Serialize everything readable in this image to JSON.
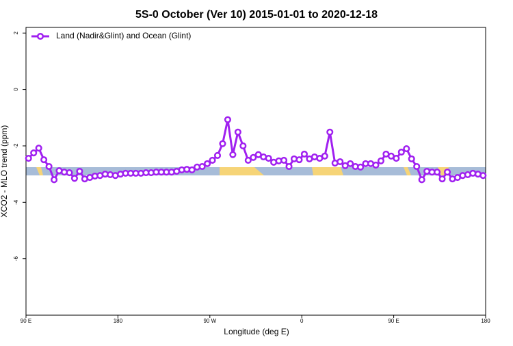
{
  "chart_data": {
    "type": "line",
    "title": "5S-0 October (Ver 10)   2015-01-01 to 2020-12-18",
    "x_label": "Longitude (deg E)",
    "y_label": "XCO2 - MLO trend (ppm)",
    "legend_position": "top-left",
    "x": [
      92.5,
      97.5,
      102.5,
      107.5,
      112.5,
      117.5,
      122.5,
      127.5,
      132.5,
      137.5,
      142.5,
      147.5,
      152.5,
      157.5,
      162.5,
      167.5,
      172.5,
      177.5,
      182.5,
      187.5,
      192.5,
      197.5,
      202.5,
      207.5,
      212.5,
      217.5,
      222.5,
      227.5,
      232.5,
      237.5,
      242.5,
      247.5,
      252.5,
      257.5,
      262.5,
      267.5,
      272.5,
      277.5,
      282.5,
      287.5,
      292.5,
      297.5,
      302.5,
      307.5,
      312.5,
      317.5,
      322.5,
      327.5,
      332.5,
      337.5,
      342.5,
      347.5,
      352.5,
      357.5,
      362.5,
      367.5,
      372.5,
      377.5,
      382.5,
      387.5,
      392.5,
      397.5,
      402.5,
      407.5,
      412.5,
      417.5,
      422.5,
      427.5,
      432.5,
      437.5,
      442.5,
      447.5,
      452.5,
      457.5,
      462.5,
      467.5,
      472.5,
      477.5,
      482.5,
      487.5,
      492.5,
      497.5,
      502.5,
      507.5,
      512.5,
      517.5,
      522.5,
      527.5,
      532.5,
      537.5
    ],
    "series": [
      {
        "name": "Land (Nadir&Glint) and Ocean (Glint)",
        "color": "#a020f0",
        "values": [
          -2.44,
          -2.25,
          -2.08,
          -2.49,
          -2.73,
          -3.2,
          -2.88,
          -2.93,
          -2.95,
          -3.15,
          -2.9,
          -3.17,
          -3.12,
          -3.07,
          -3.05,
          -3.0,
          -3.02,
          -3.05,
          -3.0,
          -2.97,
          -2.97,
          -2.97,
          -2.97,
          -2.95,
          -2.95,
          -2.93,
          -2.93,
          -2.93,
          -2.93,
          -2.9,
          -2.85,
          -2.83,
          -2.85,
          -2.75,
          -2.73,
          -2.63,
          -2.51,
          -2.34,
          -1.92,
          -1.07,
          -2.31,
          -1.51,
          -2.0,
          -2.51,
          -2.41,
          -2.31,
          -2.39,
          -2.44,
          -2.58,
          -2.53,
          -2.51,
          -2.73,
          -2.46,
          -2.49,
          -2.29,
          -2.46,
          -2.39,
          -2.44,
          -2.36,
          -1.51,
          -2.61,
          -2.56,
          -2.7,
          -2.63,
          -2.73,
          -2.75,
          -2.63,
          -2.63,
          -2.68,
          -2.53,
          -2.29,
          -2.36,
          -2.44,
          -2.22,
          -2.1,
          -2.46,
          -2.73,
          -3.2,
          -2.9,
          -2.93,
          -2.93,
          -3.17,
          -2.93,
          -3.17,
          -3.12,
          -3.05,
          -3.02,
          -2.97,
          -3.0,
          -3.05
        ]
      }
    ],
    "xlim": [
      90,
      540
    ],
    "xticks": [
      {
        "value": 90,
        "label": "90 E"
      },
      180,
      {
        "value": 270,
        "label": "90 W"
      },
      {
        "value": 360,
        "label": "0"
      },
      {
        "value": 450,
        "label": "90 E"
      },
      {
        "value": 540,
        "label": "180"
      }
    ],
    "ylim": [
      -8,
      2.2
    ],
    "yticks": [
      2,
      0,
      -2,
      -4,
      -6
    ]
  }
}
